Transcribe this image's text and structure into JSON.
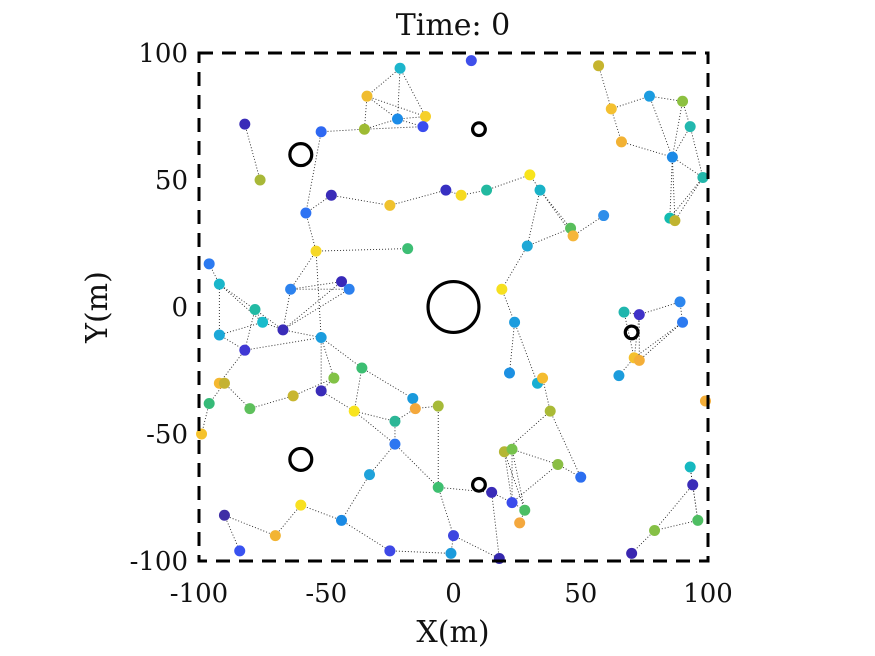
{
  "chart_data": {
    "type": "scatter",
    "title": "Time: 0",
    "xlabel": "X(m)",
    "ylabel": "Y(m)",
    "xlim": [
      -100,
      100
    ],
    "ylim": [
      -100,
      100
    ],
    "xticks": [
      -100,
      -50,
      0,
      50,
      100
    ],
    "yticks": [
      -100,
      -50,
      0,
      50,
      100
    ],
    "xtick_labels": [
      "-100",
      "-50",
      "0",
      "50",
      "100"
    ],
    "ytick_labels": [
      "-100",
      "-50",
      "0",
      "50",
      "100"
    ],
    "grid": false,
    "frame_style": "dashed",
    "obstacles": [
      {
        "x": 0,
        "y": 0,
        "r": 10
      },
      {
        "x": -60,
        "y": 60,
        "r": 4.3
      },
      {
        "x": -60,
        "y": -60,
        "r": 4.3
      },
      {
        "x": 10,
        "y": 70,
        "r": 2.5
      },
      {
        "x": 10,
        "y": -70,
        "r": 2.5
      },
      {
        "x": 70,
        "y": -10,
        "r": 2.5
      }
    ],
    "nodes": [
      {
        "x": -21,
        "y": 94,
        "c": "#1CB5CC"
      },
      {
        "x": 7,
        "y": 97,
        "c": "#3F4FEA"
      },
      {
        "x": -34,
        "y": 83,
        "c": "#F0BC2E"
      },
      {
        "x": -11,
        "y": 75,
        "c": "#F6D02A"
      },
      {
        "x": -22,
        "y": 74,
        "c": "#1C8CE8"
      },
      {
        "x": -12,
        "y": 71,
        "c": "#3A4CEE"
      },
      {
        "x": -35,
        "y": 70,
        "c": "#9EBB33"
      },
      {
        "x": -52,
        "y": 69,
        "c": "#2E68F2"
      },
      {
        "x": -82,
        "y": 72,
        "c": "#3A2CB8"
      },
      {
        "x": -76,
        "y": 50,
        "c": "#A8B838"
      },
      {
        "x": -48,
        "y": 44,
        "c": "#3A2CB8"
      },
      {
        "x": -58,
        "y": 37,
        "c": "#2E73F3"
      },
      {
        "x": -25,
        "y": 40,
        "c": "#F0C22E"
      },
      {
        "x": -54,
        "y": 22,
        "c": "#F6D828"
      },
      {
        "x": -18,
        "y": 23,
        "c": "#3DBE74"
      },
      {
        "x": -3,
        "y": 46,
        "c": "#3730C2"
      },
      {
        "x": 3,
        "y": 44,
        "c": "#F6DA20"
      },
      {
        "x": 13,
        "y": 46,
        "c": "#22B9A0"
      },
      {
        "x": 30,
        "y": 52,
        "c": "#F8E41C"
      },
      {
        "x": 34,
        "y": 46,
        "c": "#19B2C8"
      },
      {
        "x": 29,
        "y": 24,
        "c": "#1FA8D6"
      },
      {
        "x": 46,
        "y": 31,
        "c": "#58BE5C"
      },
      {
        "x": 47,
        "y": 28,
        "c": "#F5B63A"
      },
      {
        "x": 59,
        "y": 36,
        "c": "#2E8EEA"
      },
      {
        "x": 57,
        "y": 95,
        "c": "#C6B42E"
      },
      {
        "x": 62,
        "y": 78,
        "c": "#F4C030"
      },
      {
        "x": 77,
        "y": 83,
        "c": "#1C9CE0"
      },
      {
        "x": 90,
        "y": 81,
        "c": "#8CC040"
      },
      {
        "x": 93,
        "y": 71,
        "c": "#22B7AE"
      },
      {
        "x": 66,
        "y": 65,
        "c": "#F2B234"
      },
      {
        "x": 86,
        "y": 59,
        "c": "#1C8AE6"
      },
      {
        "x": 98,
        "y": 51,
        "c": "#22B6AA"
      },
      {
        "x": 85,
        "y": 35,
        "c": "#12BBB0"
      },
      {
        "x": 87,
        "y": 34,
        "c": "#C0B430"
      },
      {
        "x": -96,
        "y": 17,
        "c": "#2C7AF0"
      },
      {
        "x": -92,
        "y": 9,
        "c": "#1AB6CA"
      },
      {
        "x": -64,
        "y": 7,
        "c": "#2C82EE"
      },
      {
        "x": -44,
        "y": 10,
        "c": "#3728B8"
      },
      {
        "x": -41,
        "y": 7,
        "c": "#2C80EE"
      },
      {
        "x": -78,
        "y": -1,
        "c": "#22BAA4"
      },
      {
        "x": -75,
        "y": -6,
        "c": "#1ABCCC"
      },
      {
        "x": -92,
        "y": -11,
        "c": "#1CA8D8"
      },
      {
        "x": -67,
        "y": -9,
        "c": "#3A2CB8"
      },
      {
        "x": -52,
        "y": -12,
        "c": "#1A9CDE"
      },
      {
        "x": -82,
        "y": -17,
        "c": "#4038D4"
      },
      {
        "x": -92,
        "y": -30,
        "c": "#F4B830"
      },
      {
        "x": -90,
        "y": -30,
        "c": "#C4B232"
      },
      {
        "x": -96,
        "y": -38,
        "c": "#36BA78"
      },
      {
        "x": -80,
        "y": -40,
        "c": "#5EC05C"
      },
      {
        "x": -99,
        "y": -50,
        "c": "#F5C22C"
      },
      {
        "x": -36,
        "y": -24,
        "c": "#3CBE72"
      },
      {
        "x": -47,
        "y": -28,
        "c": "#82C246"
      },
      {
        "x": -63,
        "y": -35,
        "c": "#C8B630"
      },
      {
        "x": -52,
        "y": -33,
        "c": "#3A2CB8"
      },
      {
        "x": -39,
        "y": -41,
        "c": "#F8E41E"
      },
      {
        "x": -16,
        "y": -36,
        "c": "#1A9ADC"
      },
      {
        "x": -15,
        "y": -40,
        "c": "#F4A83C"
      },
      {
        "x": -23,
        "y": -45,
        "c": "#2CB696"
      },
      {
        "x": -6,
        "y": -39,
        "c": "#A6BA38"
      },
      {
        "x": -23,
        "y": -54,
        "c": "#2C76F0"
      },
      {
        "x": -33,
        "y": -66,
        "c": "#1FA2DA"
      },
      {
        "x": -6,
        "y": -71,
        "c": "#3EBF70"
      },
      {
        "x": -60,
        "y": -78,
        "c": "#F8E020"
      },
      {
        "x": -44,
        "y": -84,
        "c": "#1A8AE4"
      },
      {
        "x": -90,
        "y": -82,
        "c": "#3F2EA6"
      },
      {
        "x": -84,
        "y": -96,
        "c": "#3952F0"
      },
      {
        "x": -70,
        "y": -90,
        "c": "#F2B432"
      },
      {
        "x": -25,
        "y": -96,
        "c": "#3E48E6"
      },
      {
        "x": -1,
        "y": -97,
        "c": "#1C9BDC"
      },
      {
        "x": 0,
        "y": -90,
        "c": "#3D46E0"
      },
      {
        "x": 18,
        "y": -99,
        "c": "#3528AE"
      },
      {
        "x": 19,
        "y": 7,
        "c": "#F6E020"
      },
      {
        "x": 24,
        "y": -6,
        "c": "#1C9CDE"
      },
      {
        "x": 22,
        "y": -26,
        "c": "#1C90E2"
      },
      {
        "x": 33,
        "y": -30,
        "c": "#18AED2"
      },
      {
        "x": 35,
        "y": -28,
        "c": "#F4BC30"
      },
      {
        "x": 38,
        "y": -41,
        "c": "#AABA36"
      },
      {
        "x": 20,
        "y": -57,
        "c": "#B4B634"
      },
      {
        "x": 23,
        "y": -56,
        "c": "#76C24C"
      },
      {
        "x": 41,
        "y": -62,
        "c": "#8ABE44"
      },
      {
        "x": 50,
        "y": -67,
        "c": "#2C6EF0"
      },
      {
        "x": 15,
        "y": -73,
        "c": "#3A2CB8"
      },
      {
        "x": 23,
        "y": -77,
        "c": "#3A4CEC"
      },
      {
        "x": 28,
        "y": -80,
        "c": "#4CBE64"
      },
      {
        "x": 26,
        "y": -85,
        "c": "#F4A83E"
      },
      {
        "x": 67,
        "y": -2,
        "c": "#20B6AE"
      },
      {
        "x": 73,
        "y": -3,
        "c": "#4032C8"
      },
      {
        "x": 89,
        "y": 2,
        "c": "#2C86EE"
      },
      {
        "x": 90,
        "y": -6,
        "c": "#2C7AF0"
      },
      {
        "x": 71,
        "y": -20,
        "c": "#F4C02E"
      },
      {
        "x": 73,
        "y": -21,
        "c": "#F4AE38"
      },
      {
        "x": 65,
        "y": -27,
        "c": "#1C9CDC"
      },
      {
        "x": 99,
        "y": -37,
        "c": "#F4AE38"
      },
      {
        "x": 93,
        "y": -63,
        "c": "#16B8C0"
      },
      {
        "x": 94,
        "y": -70,
        "c": "#3A2CB8"
      },
      {
        "x": 96,
        "y": -84,
        "c": "#4EBE62"
      },
      {
        "x": 79,
        "y": -88,
        "c": "#86C046"
      },
      {
        "x": 70,
        "y": -97,
        "c": "#3A26B0"
      }
    ],
    "edges": [
      [
        0,
        2
      ],
      [
        0,
        4
      ],
      [
        0,
        3
      ],
      [
        2,
        4
      ],
      [
        2,
        6
      ],
      [
        2,
        3
      ],
      [
        3,
        4
      ],
      [
        4,
        5
      ],
      [
        6,
        4
      ],
      [
        6,
        7
      ],
      [
        6,
        5
      ],
      [
        3,
        5
      ],
      [
        7,
        11
      ],
      [
        8,
        9
      ],
      [
        10,
        11
      ],
      [
        10,
        12
      ],
      [
        12,
        15
      ],
      [
        15,
        16
      ],
      [
        16,
        17
      ],
      [
        17,
        18
      ],
      [
        18,
        19
      ],
      [
        19,
        20
      ],
      [
        19,
        21
      ],
      [
        20,
        21
      ],
      [
        21,
        22
      ],
      [
        22,
        23
      ],
      [
        19,
        22
      ],
      [
        20,
        71
      ],
      [
        11,
        13
      ],
      [
        13,
        14
      ],
      [
        13,
        36
      ],
      [
        13,
        43
      ],
      [
        36,
        37
      ],
      [
        36,
        38
      ],
      [
        37,
        38
      ],
      [
        36,
        42
      ],
      [
        37,
        42
      ],
      [
        38,
        42
      ],
      [
        42,
        39
      ],
      [
        39,
        40
      ],
      [
        40,
        41
      ],
      [
        41,
        35
      ],
      [
        35,
        34
      ],
      [
        35,
        39
      ],
      [
        35,
        40
      ],
      [
        40,
        42
      ],
      [
        39,
        44
      ],
      [
        41,
        44
      ],
      [
        44,
        43
      ],
      [
        42,
        43
      ],
      [
        43,
        50
      ],
      [
        43,
        51
      ],
      [
        43,
        53
      ],
      [
        44,
        45
      ],
      [
        45,
        46
      ],
      [
        46,
        47
      ],
      [
        47,
        49
      ],
      [
        46,
        48
      ],
      [
        48,
        52
      ],
      [
        52,
        51
      ],
      [
        51,
        53
      ],
      [
        53,
        54
      ],
      [
        54,
        50
      ],
      [
        50,
        55
      ],
      [
        55,
        56
      ],
      [
        56,
        57
      ],
      [
        57,
        54
      ],
      [
        57,
        59
      ],
      [
        54,
        59
      ],
      [
        58,
        56
      ],
      [
        58,
        61
      ],
      [
        59,
        60
      ],
      [
        60,
        63
      ],
      [
        59,
        61
      ],
      [
        61,
        69
      ],
      [
        61,
        81
      ],
      [
        63,
        62
      ],
      [
        63,
        67
      ],
      [
        62,
        66
      ],
      [
        64,
        65
      ],
      [
        66,
        64
      ],
      [
        67,
        68
      ],
      [
        68,
        69
      ],
      [
        69,
        70
      ],
      [
        70,
        81
      ],
      [
        71,
        72
      ],
      [
        72,
        73
      ],
      [
        72,
        74
      ],
      [
        74,
        75
      ],
      [
        75,
        76
      ],
      [
        76,
        80
      ],
      [
        76,
        77
      ],
      [
        77,
        78
      ],
      [
        78,
        79
      ],
      [
        79,
        80
      ],
      [
        77,
        82
      ],
      [
        78,
        82
      ],
      [
        78,
        83
      ],
      [
        82,
        83
      ],
      [
        83,
        84
      ],
      [
        81,
        82
      ],
      [
        82,
        79
      ],
      [
        77,
        83
      ],
      [
        24,
        25
      ],
      [
        25,
        26
      ],
      [
        25,
        29
      ],
      [
        26,
        27
      ],
      [
        27,
        28
      ],
      [
        28,
        30
      ],
      [
        29,
        30
      ],
      [
        30,
        31
      ],
      [
        30,
        32
      ],
      [
        30,
        33
      ],
      [
        31,
        32
      ],
      [
        31,
        33
      ],
      [
        28,
        31
      ],
      [
        26,
        30
      ],
      [
        27,
        30
      ],
      [
        85,
        86
      ],
      [
        85,
        89
      ],
      [
        86,
        89
      ],
      [
        86,
        87
      ],
      [
        87,
        88
      ],
      [
        88,
        89
      ],
      [
        88,
        90
      ],
      [
        89,
        90
      ],
      [
        89,
        91
      ],
      [
        86,
        90
      ],
      [
        93,
        94
      ],
      [
        93,
        95
      ],
      [
        94,
        95
      ],
      [
        95,
        96
      ],
      [
        96,
        97
      ],
      [
        94,
        96
      ]
    ]
  }
}
